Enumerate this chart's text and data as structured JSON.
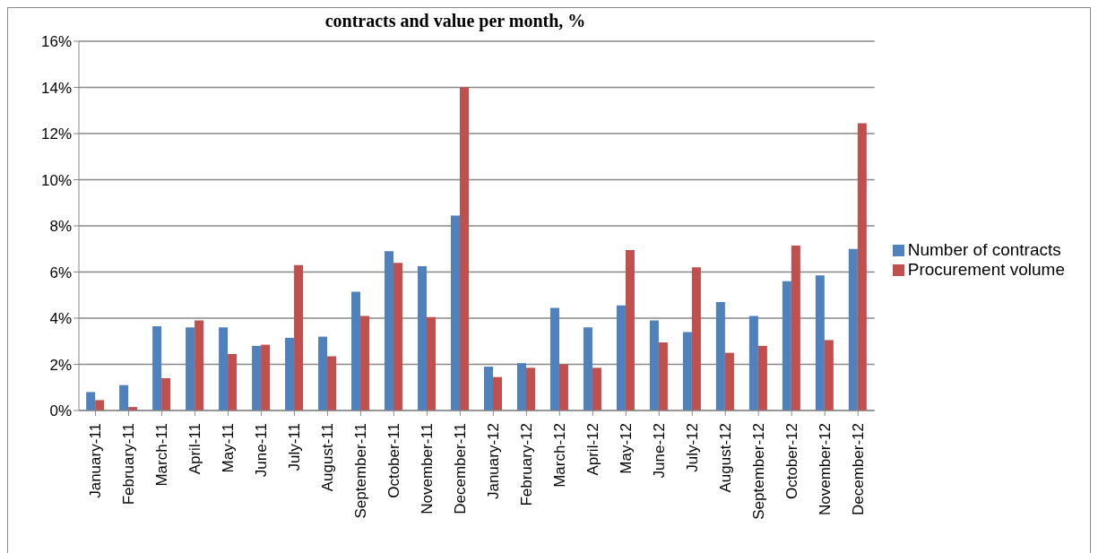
{
  "chart_data": {
    "type": "bar",
    "title": "contracts and value per month, %",
    "categories": [
      "January-11",
      "February-11",
      "March-11",
      "April-11",
      "May-11",
      "June-11",
      "July-11",
      "August-11",
      "September-11",
      "October-11",
      "November-11",
      "December-11",
      "January-12",
      "February-12",
      "March-12",
      "April-12",
      "May-12",
      "June-12",
      "July-12",
      "August-12",
      "September-12",
      "October-12",
      "November-12",
      "December-12"
    ],
    "series": [
      {
        "name": "Number of contracts",
        "color": "#4f81bd",
        "values": [
          0.8,
          1.1,
          3.65,
          3.6,
          3.6,
          2.8,
          3.15,
          3.2,
          5.15,
          6.9,
          6.25,
          8.45,
          1.9,
          2.05,
          4.45,
          3.6,
          4.55,
          3.9,
          3.4,
          4.7,
          4.1,
          5.6,
          5.85,
          7.0
        ]
      },
      {
        "name": "Procurement volume",
        "color": "#c0504d",
        "values": [
          0.45,
          0.15,
          1.4,
          3.9,
          2.45,
          2.85,
          6.3,
          2.35,
          4.1,
          6.4,
          4.05,
          14.0,
          1.45,
          1.85,
          2.0,
          1.85,
          6.95,
          2.95,
          6.2,
          2.5,
          2.8,
          7.15,
          3.05,
          12.45
        ]
      }
    ],
    "ylim": [
      0,
      16
    ],
    "yticks": [
      {
        "value": 0,
        "label": "0%"
      },
      {
        "value": 2,
        "label": "2%"
      },
      {
        "value": 4,
        "label": "4%"
      },
      {
        "value": 6,
        "label": "6%"
      },
      {
        "value": 8,
        "label": "8%"
      },
      {
        "value": 10,
        "label": "10%"
      },
      {
        "value": 12,
        "label": "12%"
      },
      {
        "value": 14,
        "label": "14%"
      },
      {
        "value": 16,
        "label": "16%"
      }
    ],
    "grid": "y",
    "legend": "right"
  }
}
